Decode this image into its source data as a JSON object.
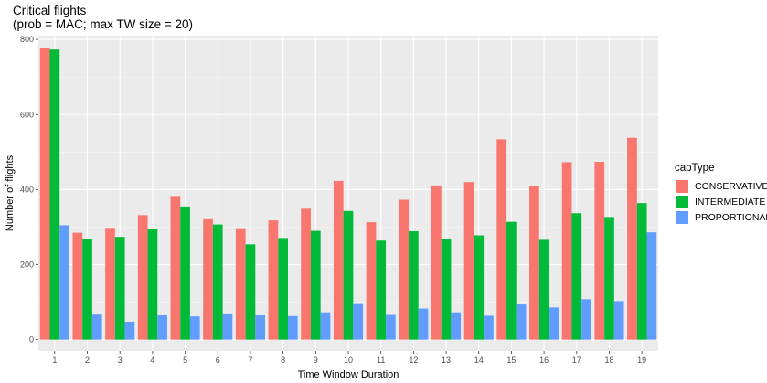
{
  "chart_data": {
    "type": "bar",
    "title": "Critical flights",
    "subtitle": "(prob = MAC; max TW size = 20)",
    "xlabel": "Time Window Duration",
    "ylabel": "Number of flights",
    "categories": [
      "1",
      "2",
      "3",
      "4",
      "5",
      "6",
      "7",
      "8",
      "9",
      "10",
      "11",
      "12",
      "13",
      "14",
      "15",
      "16",
      "17",
      "18",
      "19"
    ],
    "ylim": [
      -30,
      810
    ],
    "yticks": [
      0,
      200,
      400,
      600,
      800
    ],
    "grid": true,
    "legend_title": "capType",
    "legend_position": "right",
    "series": [
      {
        "name": "CONSERVATIVE",
        "color": "#F8766D",
        "values": [
          778,
          285,
          298,
          332,
          383,
          321,
          297,
          318,
          349,
          423,
          313,
          373,
          411,
          420,
          534,
          410,
          473,
          474,
          538
        ]
      },
      {
        "name": "INTERMEDIATE",
        "color": "#00BA38",
        "values": [
          773,
          269,
          274,
          295,
          355,
          307,
          254,
          271,
          290,
          343,
          264,
          289,
          269,
          278,
          314,
          266,
          337,
          327,
          364
        ]
      },
      {
        "name": "PROPORTIONAL",
        "color": "#619CFF",
        "values": [
          305,
          67,
          48,
          65,
          62,
          70,
          65,
          63,
          73,
          95,
          66,
          83,
          73,
          64,
          94,
          86,
          108,
          103,
          286
        ]
      }
    ]
  }
}
